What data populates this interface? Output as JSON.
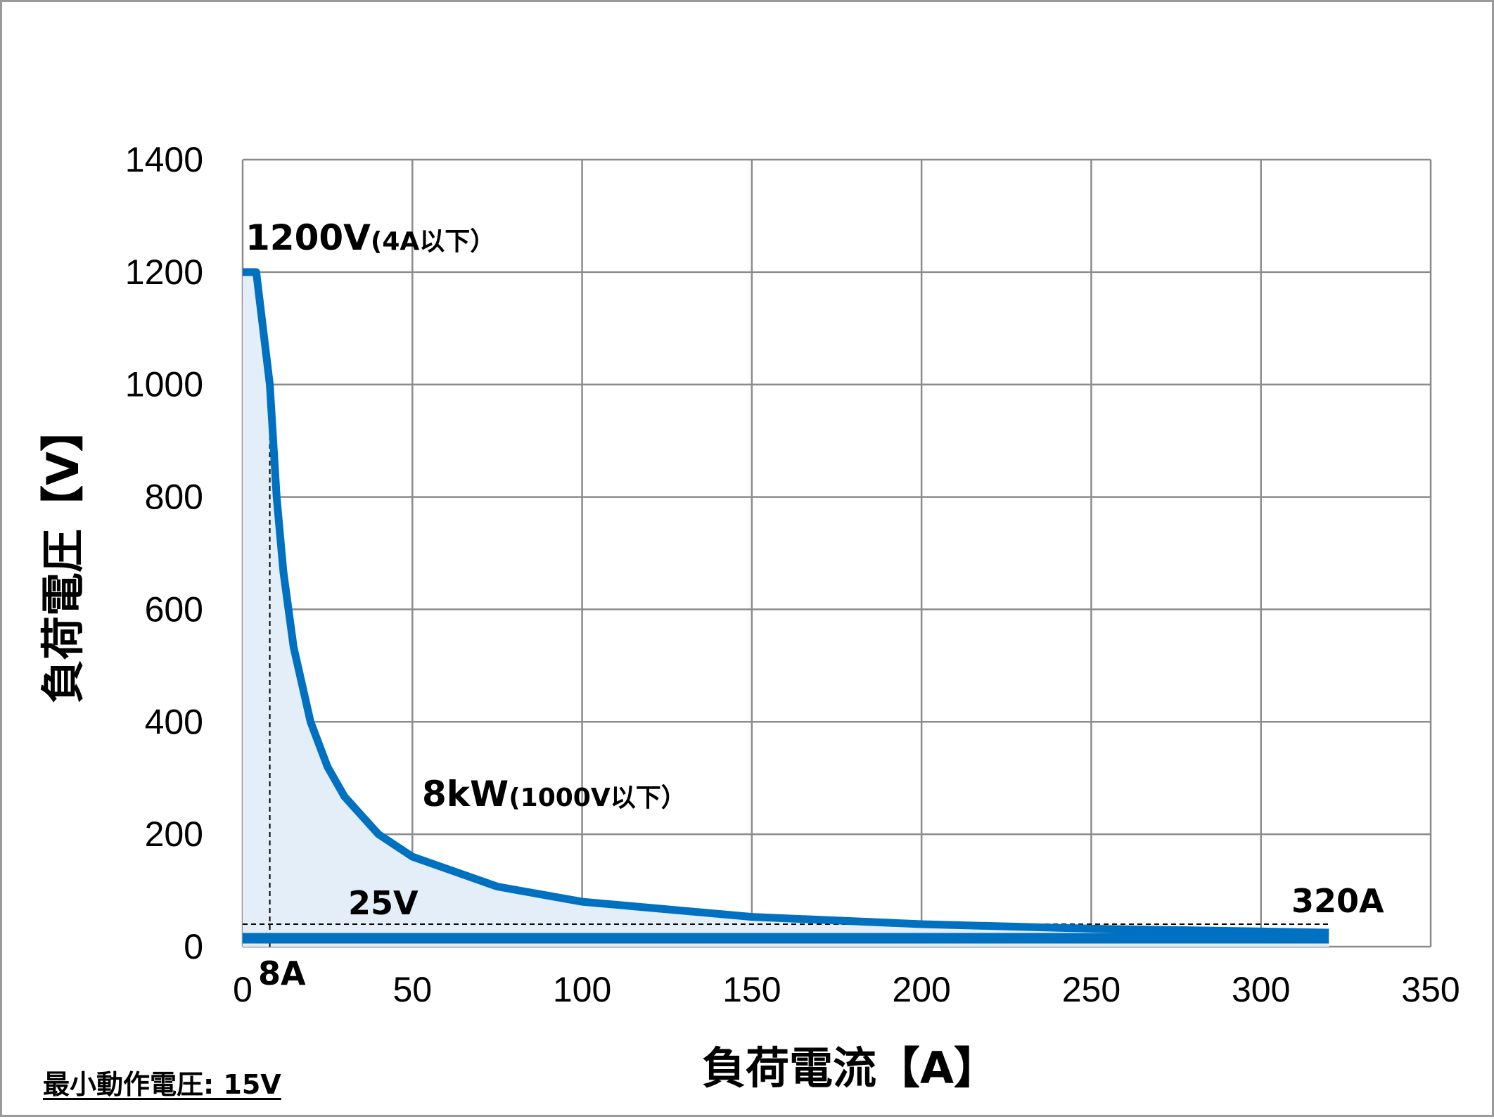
{
  "chart_data": {
    "type": "line",
    "xlabel": "負荷電流【A】",
    "ylabel": "負荷電圧【V】",
    "xlim": [
      0,
      350
    ],
    "ylim": [
      0,
      1400
    ],
    "x_ticks": [
      "0",
      "50",
      "100",
      "150",
      "200",
      "250",
      "300",
      "350"
    ],
    "y_ticks": [
      "0",
      "200",
      "400",
      "600",
      "800",
      "1000",
      "1200",
      "1400"
    ],
    "grid": true,
    "series": [
      {
        "x": [
          0,
          4,
          8,
          10,
          12,
          15,
          20,
          25,
          30,
          40,
          50,
          75,
          100,
          150,
          200,
          250,
          300,
          320
        ],
        "y": [
          1200,
          1200,
          1000,
          800,
          667,
          533,
          400,
          320,
          267,
          200,
          160,
          107,
          80,
          53,
          40,
          32,
          27,
          25
        ]
      },
      {
        "x": [
          0,
          320
        ],
        "y": [
          15,
          15
        ]
      }
    ],
    "reference_lines": [
      {
        "type": "vertical",
        "x": 8,
        "y_from": 0,
        "y_to": 1000
      },
      {
        "type": "horizontal",
        "y": 40,
        "x_from": 0,
        "x_to": 320
      }
    ],
    "annotations": {
      "max_voltage": {
        "main": "1200V",
        "sub": "(4A以下）"
      },
      "max_power": {
        "main": "8kW",
        "sub": "(1000V以下）"
      },
      "voltage_25": "25V",
      "current_8": "8A",
      "current_320": "320A"
    },
    "colors": {
      "line": "#0070C0",
      "fill": "#E3EEF8",
      "grid": "#8c8c8c"
    }
  },
  "footnote": "最小動作電圧: 15V"
}
